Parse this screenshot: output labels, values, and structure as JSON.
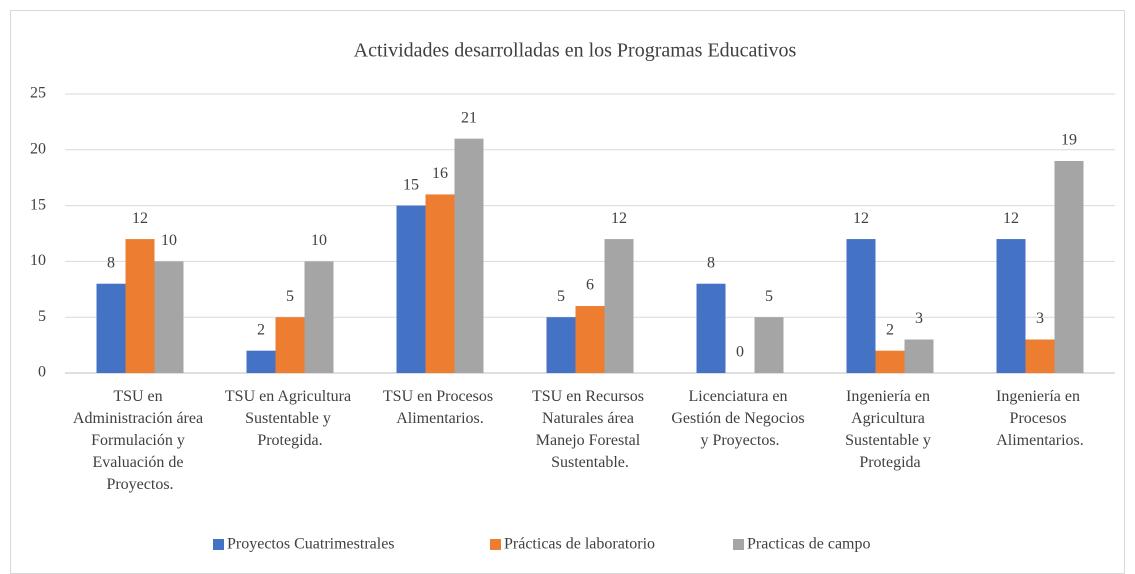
{
  "chart_data": {
    "type": "bar",
    "title": "Actividades desarrolladas en los Programas Educativos",
    "categories": [
      "TSU en Administración área Formulación y Evaluación de Proyectos.",
      "TSU en Agricultura Sustentable y Protegida.",
      "TSU en Procesos Alimentarios.",
      "TSU en Recursos Naturales área Manejo Forestal Sustentable.",
      "Licenciatura en Gestión de Negocios y Proyectos.",
      "Ingeniería en Agricultura Sustentable y Protegida",
      "Ingeniería en Procesos Alimentarios."
    ],
    "series": [
      {
        "name": "Proyectos Cuatrimestrales",
        "color": "#4472c4",
        "values": [
          8,
          2,
          15,
          5,
          8,
          12,
          12
        ]
      },
      {
        "name": "Prácticas de laboratorio",
        "color": "#ed7d31",
        "values": [
          12,
          5,
          16,
          6,
          0,
          2,
          3
        ]
      },
      {
        "name": "Practicas de campo",
        "color": "#a5a5a5",
        "values": [
          10,
          10,
          21,
          12,
          5,
          3,
          19
        ]
      }
    ],
    "ylim": [
      0,
      25
    ],
    "yticks": [
      0,
      5,
      10,
      15,
      20,
      25
    ],
    "grid": true,
    "legend": "bottom"
  }
}
